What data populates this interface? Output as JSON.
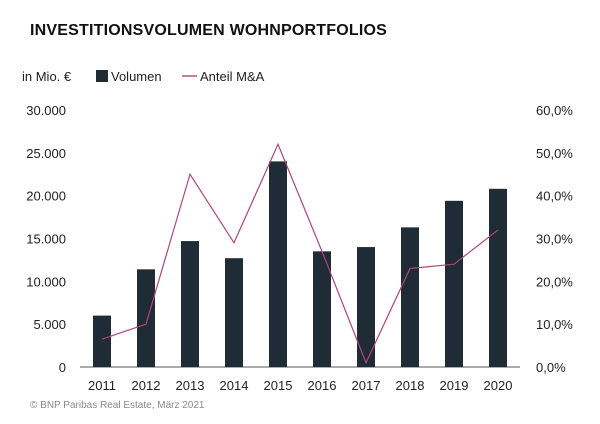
{
  "title": "INVESTITIONSVOLUMEN WOHNPORTFOLIOS",
  "source": "© BNP Paribas Real Estate, März 2021",
  "chart_data": {
    "type": "bar",
    "categories": [
      "2011",
      "2012",
      "2013",
      "2014",
      "2015",
      "2016",
      "2017",
      "2018",
      "2019",
      "2020"
    ],
    "series": [
      {
        "name": "Volumen",
        "type": "bar",
        "axis": "left",
        "color": "#1f2b35",
        "values": [
          6000,
          11400,
          14700,
          12700,
          24000,
          13500,
          14000,
          16300,
          19400,
          20800
        ]
      },
      {
        "name": "Anteil M&A",
        "type": "line",
        "axis": "right",
        "color": "#b0457e",
        "values": [
          6.5,
          10.0,
          45.0,
          29.0,
          52.0,
          27.0,
          1.0,
          23.0,
          24.0,
          32.0
        ]
      }
    ],
    "ylabel": "in Mio. €",
    "ylim": [
      0,
      30000
    ],
    "y_ticks": [
      "0",
      "5.000",
      "10.000",
      "15.000",
      "20.000",
      "25.000",
      "30.000"
    ],
    "y2lim": [
      0,
      60
    ],
    "y2_ticks": [
      "0,0%",
      "10,0%",
      "20,0%",
      "30,0%",
      "40,0%",
      "50,0%",
      "60,0%"
    ],
    "legend_position": "top-left",
    "grid": false
  }
}
